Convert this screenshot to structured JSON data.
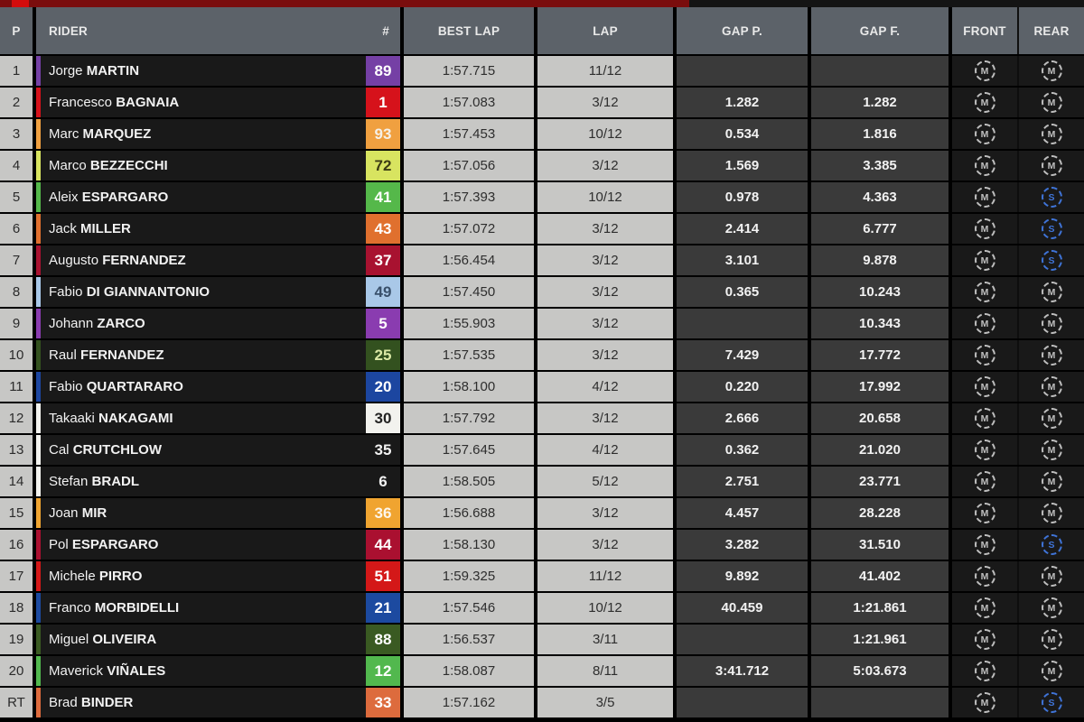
{
  "header": {
    "position": "P",
    "rider": "RIDER",
    "number": "#",
    "best_lap": "BEST LAP",
    "lap": "LAP",
    "gap_p": "GAP P.",
    "gap_f": "GAP F.",
    "front": "FRONT",
    "rear": "REAR"
  },
  "colors": {
    "top_bar_dark_red": "#7a0d0d",
    "top_bar_bright_red": "#d40c0c",
    "header_bg": "#5c6269",
    "light_cell_bg": "#c7c7c5",
    "dark_cell_bg": "#3a3a3a",
    "row_bg": "#191919"
  },
  "tyres": {
    "medium": {
      "letter": "M",
      "color": "#bfbfbf"
    },
    "soft": {
      "letter": "S",
      "color": "#3f74d8"
    }
  },
  "rows": [
    {
      "pos": "1",
      "first": "Jorge",
      "last": "MARTIN",
      "num": "89",
      "num_bg": "#7540a5",
      "num_color": "#ffffff",
      "stripe": "#7540a5",
      "best_lap": "1:57.715",
      "lap": "11/12",
      "gap_p": "",
      "gap_f": "",
      "front": "M",
      "rear": "M"
    },
    {
      "pos": "2",
      "first": "Francesco",
      "last": "BAGNAIA",
      "num": "1",
      "num_bg": "#d6121b",
      "num_color": "#ffffff",
      "stripe": "#d6121b",
      "best_lap": "1:57.083",
      "lap": "3/12",
      "gap_p": "1.282",
      "gap_f": "1.282",
      "front": "M",
      "rear": "M"
    },
    {
      "pos": "3",
      "first": "Marc",
      "last": "MARQUEZ",
      "num": "93",
      "num_bg": "#f0a040",
      "num_color": "#f5f0e8",
      "stripe": "#f0a040",
      "best_lap": "1:57.453",
      "lap": "10/12",
      "gap_p": "0.534",
      "gap_f": "1.816",
      "front": "M",
      "rear": "M"
    },
    {
      "pos": "4",
      "first": "Marco",
      "last": "BEZZECCHI",
      "num": "72",
      "num_bg": "#d8e460",
      "num_color": "#3c3c14",
      "stripe": "#d8e460",
      "best_lap": "1:57.056",
      "lap": "3/12",
      "gap_p": "1.569",
      "gap_f": "3.385",
      "front": "M",
      "rear": "M"
    },
    {
      "pos": "5",
      "first": "Aleix",
      "last": "ESPARGARO",
      "num": "41",
      "num_bg": "#55b84a",
      "num_color": "#ffffff",
      "stripe": "#55b84a",
      "best_lap": "1:57.393",
      "lap": "10/12",
      "gap_p": "0.978",
      "gap_f": "4.363",
      "front": "M",
      "rear": "S"
    },
    {
      "pos": "6",
      "first": "Jack",
      "last": "MILLER",
      "num": "43",
      "num_bg": "#e0702e",
      "num_color": "#ffffff",
      "stripe": "#e0702e",
      "best_lap": "1:57.072",
      "lap": "3/12",
      "gap_p": "2.414",
      "gap_f": "6.777",
      "front": "M",
      "rear": "S"
    },
    {
      "pos": "7",
      "first": "Augusto",
      "last": "FERNANDEZ",
      "num": "37",
      "num_bg": "#a81230",
      "num_color": "#ffffff",
      "stripe": "#a81230",
      "best_lap": "1:56.454",
      "lap": "3/12",
      "gap_p": "3.101",
      "gap_f": "9.878",
      "front": "M",
      "rear": "S"
    },
    {
      "pos": "8",
      "first": "Fabio",
      "last": "DI GIANNANTONIO",
      "num": "49",
      "num_bg": "#a9c8e8",
      "num_color": "#39506b",
      "stripe": "#a9c8e8",
      "best_lap": "1:57.450",
      "lap": "3/12",
      "gap_p": "0.365",
      "gap_f": "10.243",
      "front": "M",
      "rear": "M"
    },
    {
      "pos": "9",
      "first": "Johann",
      "last": "ZARCO",
      "num": "5",
      "num_bg": "#8a3cb0",
      "num_color": "#ffffff",
      "stripe": "#8a3cb0",
      "best_lap": "1:55.903",
      "lap": "3/12",
      "gap_p": "",
      "gap_f": "10.343",
      "front": "M",
      "rear": "M"
    },
    {
      "pos": "10",
      "first": "Raul",
      "last": "FERNANDEZ",
      "num": "25",
      "num_bg": "#33511f",
      "num_color": "#dce9a6",
      "stripe": "#33511f",
      "best_lap": "1:57.535",
      "lap": "3/12",
      "gap_p": "7.429",
      "gap_f": "17.772",
      "front": "M",
      "rear": "M"
    },
    {
      "pos": "11",
      "first": "Fabio",
      "last": "QUARTARARO",
      "num": "20",
      "num_bg": "#1c46a0",
      "num_color": "#ffffff",
      "stripe": "#1c46a0",
      "best_lap": "1:58.100",
      "lap": "4/12",
      "gap_p": "0.220",
      "gap_f": "17.992",
      "front": "M",
      "rear": "M"
    },
    {
      "pos": "12",
      "first": "Takaaki",
      "last": "NAKAGAMI",
      "num": "30",
      "num_bg": "#f2f2ee",
      "num_color": "#222222",
      "stripe": "#f2f2ee",
      "best_lap": "1:57.792",
      "lap": "3/12",
      "gap_p": "2.666",
      "gap_f": "20.658",
      "front": "M",
      "rear": "M"
    },
    {
      "pos": "13",
      "first": "Cal",
      "last": "CRUTCHLOW",
      "num": "35",
      "num_bg": "transparent",
      "num_color": "#f2f2f2",
      "stripe": "#f2f2ee",
      "best_lap": "1:57.645",
      "lap": "4/12",
      "gap_p": "0.362",
      "gap_f": "21.020",
      "front": "M",
      "rear": "M"
    },
    {
      "pos": "14",
      "first": "Stefan",
      "last": "BRADL",
      "num": "6",
      "num_bg": "transparent",
      "num_color": "#f2f2f2",
      "stripe": "#f2f2ee",
      "best_lap": "1:58.505",
      "lap": "5/12",
      "gap_p": "2.751",
      "gap_f": "23.771",
      "front": "M",
      "rear": "M"
    },
    {
      "pos": "15",
      "first": "Joan",
      "last": "MIR",
      "num": "36",
      "num_bg": "#f0a430",
      "num_color": "#fdf6ec",
      "stripe": "#f0a430",
      "best_lap": "1:56.688",
      "lap": "3/12",
      "gap_p": "4.457",
      "gap_f": "28.228",
      "front": "M",
      "rear": "M"
    },
    {
      "pos": "16",
      "first": "Pol",
      "last": "ESPARGARO",
      "num": "44",
      "num_bg": "#aa1030",
      "num_color": "#ffffff",
      "stripe": "#aa1030",
      "best_lap": "1:58.130",
      "lap": "3/12",
      "gap_p": "3.282",
      "gap_f": "31.510",
      "front": "M",
      "rear": "S"
    },
    {
      "pos": "17",
      "first": "Michele",
      "last": "PIRRO",
      "num": "51",
      "num_bg": "#d41818",
      "num_color": "#ffffff",
      "stripe": "#d41818",
      "best_lap": "1:59.325",
      "lap": "11/12",
      "gap_p": "9.892",
      "gap_f": "41.402",
      "front": "M",
      "rear": "M"
    },
    {
      "pos": "18",
      "first": "Franco",
      "last": "MORBIDELLI",
      "num": "21",
      "num_bg": "#1c4aa0",
      "num_color": "#ffffff",
      "stripe": "#1c4aa0",
      "best_lap": "1:57.546",
      "lap": "10/12",
      "gap_p": "40.459",
      "gap_f": "1:21.861",
      "front": "M",
      "rear": "M"
    },
    {
      "pos": "19",
      "first": "Miguel",
      "last": "OLIVEIRA",
      "num": "88",
      "num_bg": "#3a5a22",
      "num_color": "#ffffff",
      "stripe": "#3a5a22",
      "best_lap": "1:56.537",
      "lap": "3/11",
      "gap_p": "",
      "gap_f": "1:21.961",
      "front": "M",
      "rear": "M"
    },
    {
      "pos": "20",
      "first": "Maverick",
      "last": "VIÑALES",
      "num": "12",
      "num_bg": "#52b84e",
      "num_color": "#ffffff",
      "stripe": "#52b84e",
      "best_lap": "1:58.087",
      "lap": "8/11",
      "gap_p": "3:41.712",
      "gap_f": "5:03.673",
      "front": "M",
      "rear": "M"
    },
    {
      "pos": "RT",
      "first": "Brad",
      "last": "BINDER",
      "num": "33",
      "num_bg": "#dd6b3d",
      "num_color": "#ffffff",
      "stripe": "#dd6b3d",
      "best_lap": "1:57.162",
      "lap": "3/5",
      "gap_p": "",
      "gap_f": "",
      "front": "M",
      "rear": "S"
    }
  ]
}
